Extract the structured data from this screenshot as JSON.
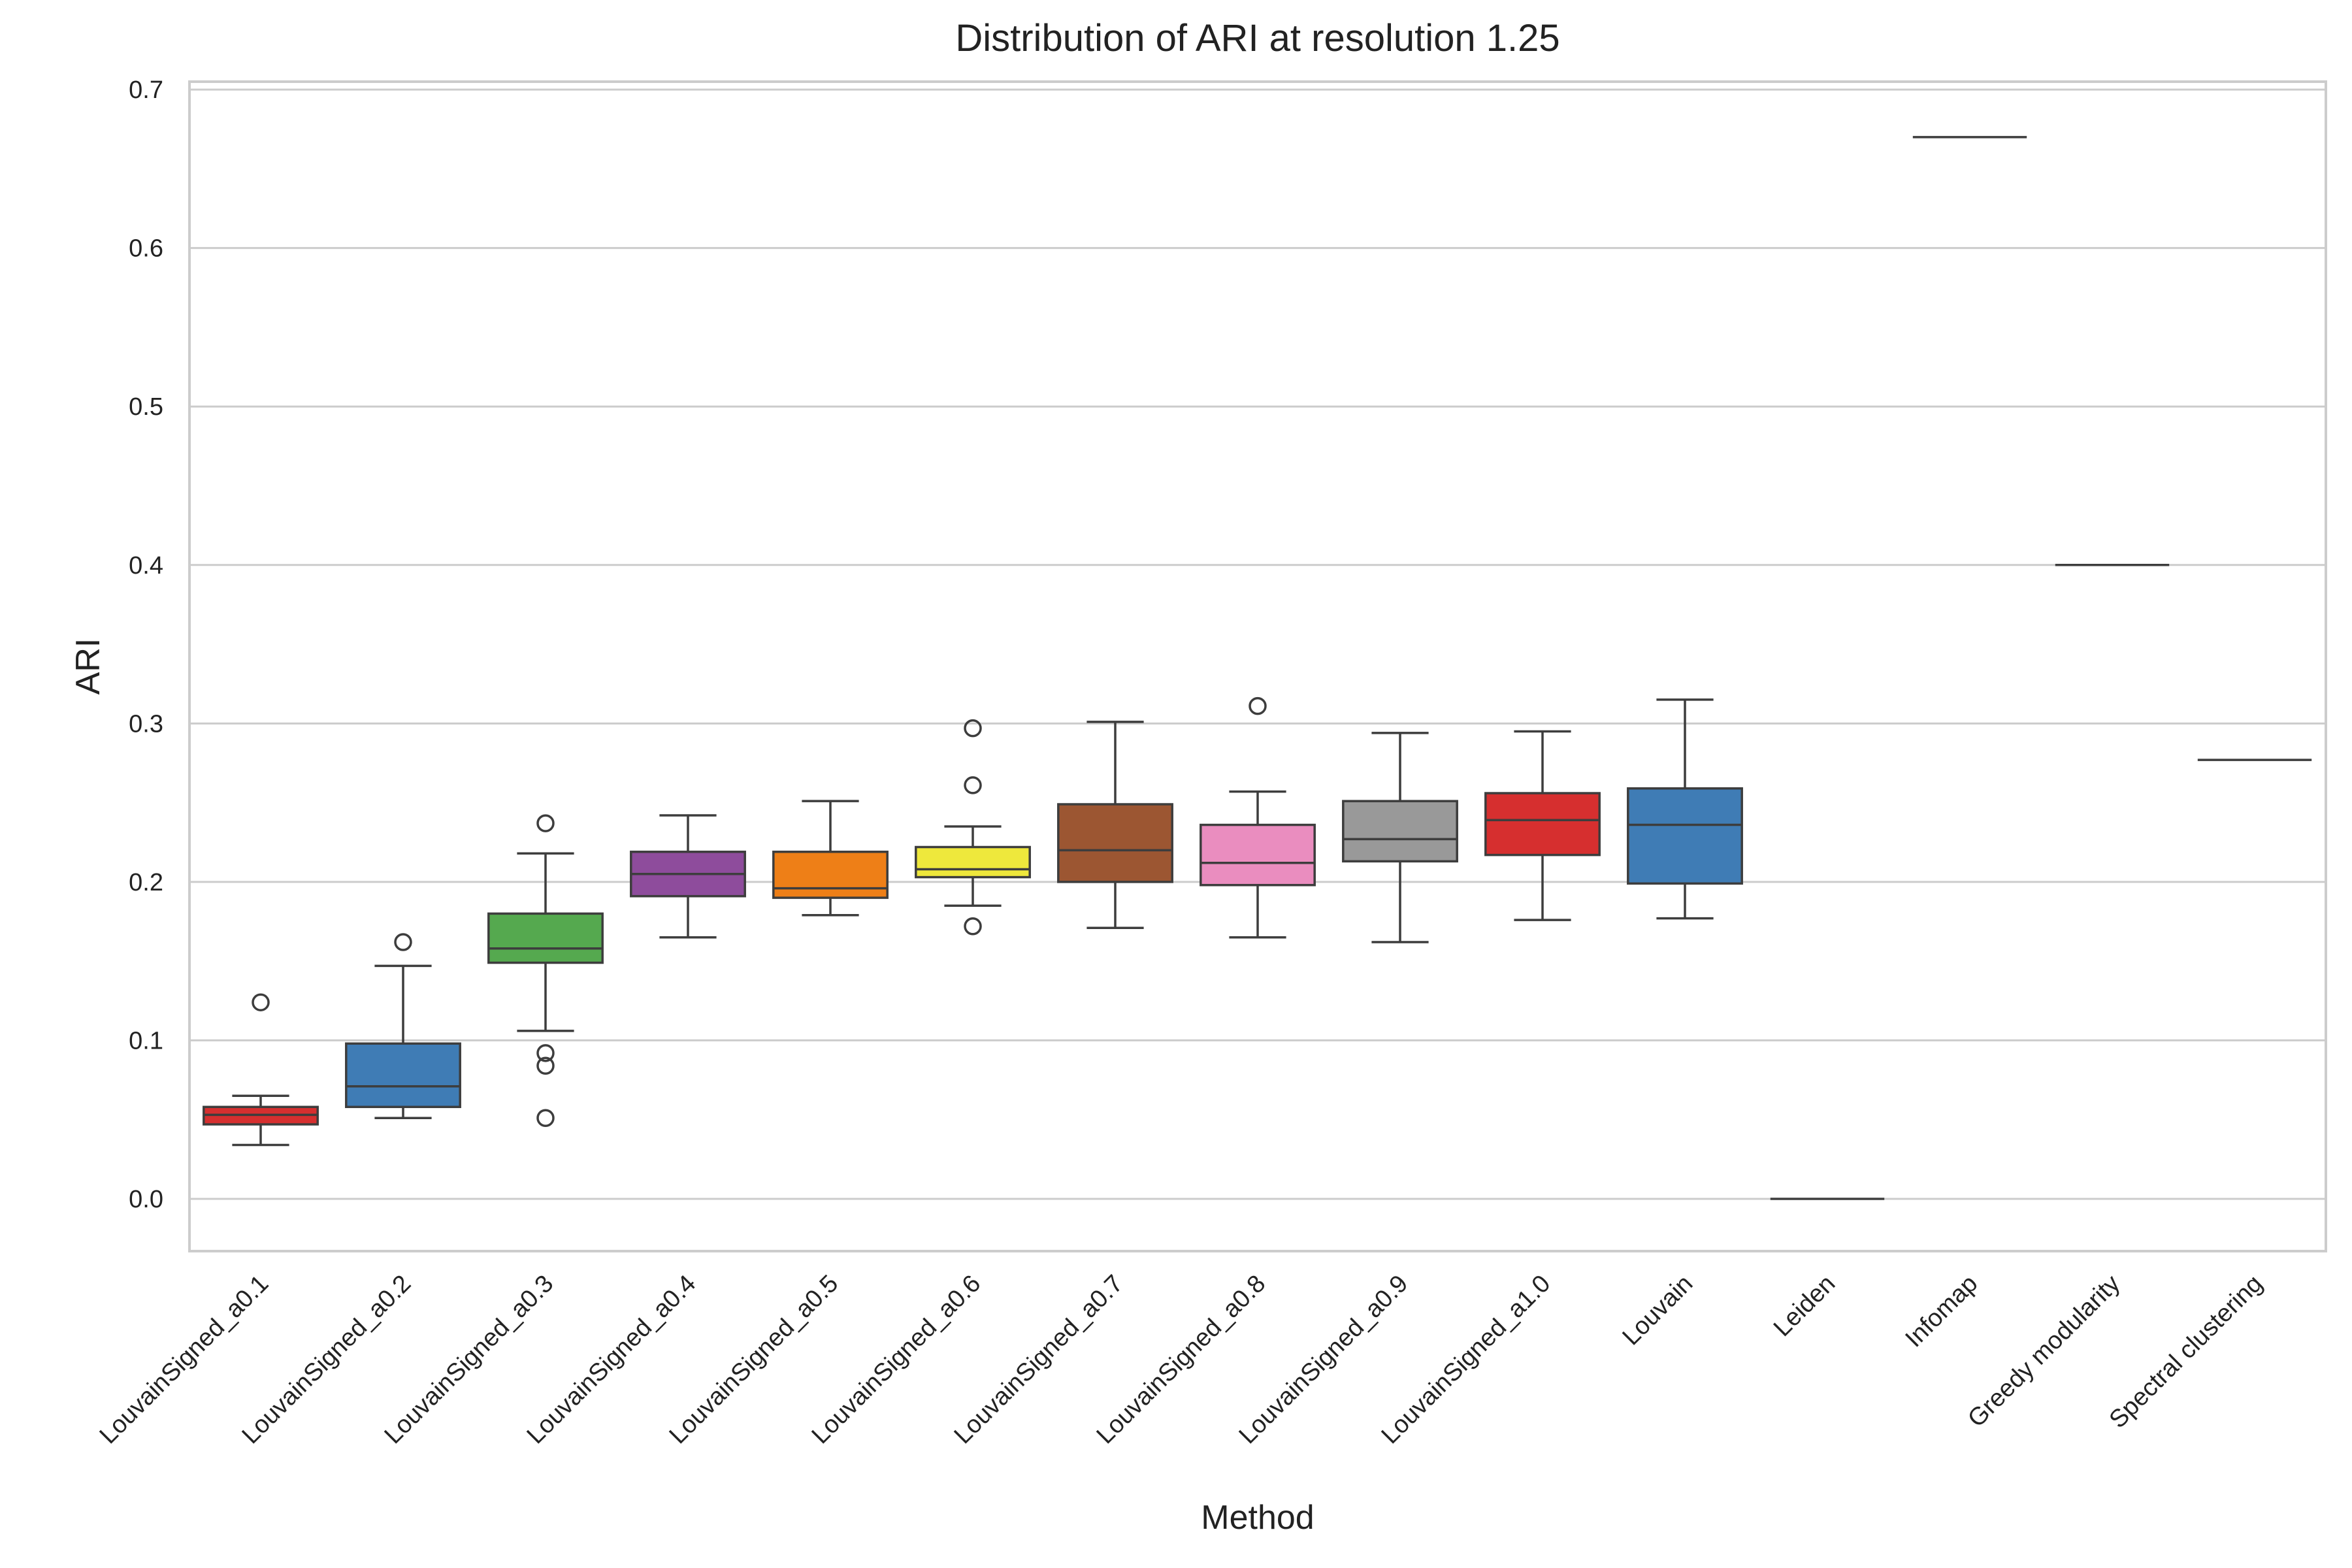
{
  "chart_data": {
    "type": "box",
    "title": "Distribution of ARI at resolution 1.25",
    "xlabel": "Method",
    "ylabel": "ARI",
    "ylim": [
      -0.033,
      0.705
    ],
    "yticks": [
      0.0,
      0.1,
      0.2,
      0.3,
      0.4,
      0.5,
      0.6,
      0.7
    ],
    "ytick_labels": [
      "0.0",
      "0.1",
      "0.2",
      "0.3",
      "0.4",
      "0.5",
      "0.6",
      "0.7"
    ],
    "grid": "horizontal",
    "categories": [
      "LouvainSigned_a0.1",
      "LouvainSigned_a0.2",
      "LouvainSigned_a0.3",
      "LouvainSigned_a0.4",
      "LouvainSigned_a0.5",
      "LouvainSigned_a0.6",
      "LouvainSigned_a0.7",
      "LouvainSigned_a0.8",
      "LouvainSigned_a0.9",
      "LouvainSigned_a1.0",
      "Louvain",
      "Leiden",
      "Infomap",
      "Greedy modularity",
      "Spectral clustering"
    ],
    "boxes": [
      {
        "category": "LouvainSigned_a0.1",
        "color": "#d62f2f",
        "whisker_low": 0.034,
        "q1": 0.047,
        "median": 0.053,
        "q3": 0.058,
        "whisker_high": 0.065,
        "outliers": [
          0.124
        ]
      },
      {
        "category": "LouvainSigned_a0.2",
        "color": "#3f7cb5",
        "whisker_low": 0.051,
        "q1": 0.058,
        "median": 0.071,
        "q3": 0.098,
        "whisker_high": 0.147,
        "outliers": [
          0.162
        ]
      },
      {
        "category": "LouvainSigned_a0.3",
        "color": "#55a94f",
        "whisker_low": 0.106,
        "q1": 0.149,
        "median": 0.158,
        "q3": 0.18,
        "whisker_high": 0.218,
        "outliers": [
          0.237,
          0.092,
          0.084,
          0.051
        ]
      },
      {
        "category": "LouvainSigned_a0.4",
        "color": "#8e4c9c",
        "whisker_low": 0.165,
        "q1": 0.191,
        "median": 0.205,
        "q3": 0.219,
        "whisker_high": 0.242,
        "outliers": []
      },
      {
        "category": "LouvainSigned_a0.5",
        "color": "#ee7f17",
        "whisker_low": 0.179,
        "q1": 0.19,
        "median": 0.196,
        "q3": 0.219,
        "whisker_high": 0.251,
        "outliers": []
      },
      {
        "category": "LouvainSigned_a0.6",
        "color": "#eee83c",
        "whisker_low": 0.185,
        "q1": 0.203,
        "median": 0.208,
        "q3": 0.222,
        "whisker_high": 0.235,
        "outliers": [
          0.297,
          0.261,
          0.172
        ]
      },
      {
        "category": "LouvainSigned_a0.7",
        "color": "#9c5632",
        "whisker_low": 0.171,
        "q1": 0.2,
        "median": 0.22,
        "q3": 0.249,
        "whisker_high": 0.301,
        "outliers": []
      },
      {
        "category": "LouvainSigned_a0.8",
        "color": "#ea8dbf",
        "whisker_low": 0.165,
        "q1": 0.198,
        "median": 0.212,
        "q3": 0.236,
        "whisker_high": 0.257,
        "outliers": [
          0.311
        ]
      },
      {
        "category": "LouvainSigned_a0.9",
        "color": "#999999",
        "whisker_low": 0.162,
        "q1": 0.213,
        "median": 0.227,
        "q3": 0.251,
        "whisker_high": 0.294,
        "outliers": []
      },
      {
        "category": "LouvainSigned_a1.0",
        "color": "#d62f2f",
        "whisker_low": 0.176,
        "q1": 0.217,
        "median": 0.239,
        "q3": 0.256,
        "whisker_high": 0.295,
        "outliers": []
      },
      {
        "category": "Louvain",
        "color": "#3f7cb5",
        "whisker_low": 0.177,
        "q1": 0.199,
        "median": 0.236,
        "q3": 0.259,
        "whisker_high": 0.315,
        "outliers": []
      },
      {
        "category": "Leiden",
        "color": "#55a94f",
        "whisker_low": 0.0,
        "q1": 0.0,
        "median": 0.0,
        "q3": 0.0,
        "whisker_high": 0.0,
        "outliers": []
      },
      {
        "category": "Infomap",
        "color": "#8e4c9c",
        "whisker_low": 0.67,
        "q1": 0.67,
        "median": 0.67,
        "q3": 0.67,
        "whisker_high": 0.67,
        "outliers": []
      },
      {
        "category": "Greedy modularity",
        "color": "#ee7f17",
        "whisker_low": 0.4,
        "q1": 0.4,
        "median": 0.4,
        "q3": 0.4,
        "whisker_high": 0.4,
        "outliers": []
      },
      {
        "category": "Spectral clustering",
        "color": "#eee83c",
        "whisker_low": 0.277,
        "q1": 0.277,
        "median": 0.277,
        "q3": 0.277,
        "whisker_high": 0.277,
        "outliers": []
      }
    ]
  }
}
